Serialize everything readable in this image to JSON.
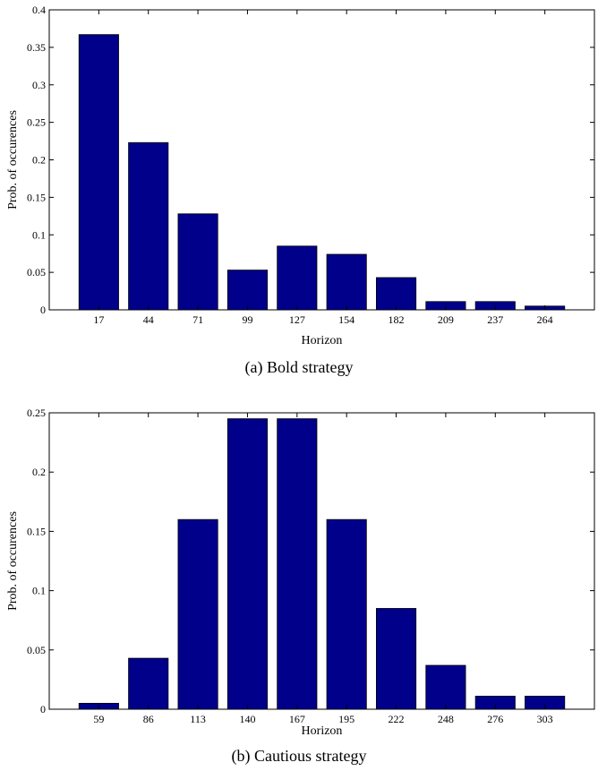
{
  "chart_data": [
    {
      "type": "bar",
      "categories": [
        "17",
        "44",
        "71",
        "99",
        "127",
        "154",
        "182",
        "209",
        "237",
        "264"
      ],
      "values": [
        0.367,
        0.223,
        0.128,
        0.053,
        0.085,
        0.074,
        0.043,
        0.011,
        0.011,
        0.005
      ],
      "yticks": [
        "0",
        "0.05",
        "0.1",
        "0.15",
        "0.2",
        "0.25",
        "0.3",
        "0.35",
        "0.4"
      ],
      "ylim": [
        0,
        0.4
      ],
      "xlabel": "Horizon",
      "ylabel": "Prob. of occurences",
      "bar_color": "#00008B",
      "caption": "(a)  Bold strategy"
    },
    {
      "type": "bar",
      "categories": [
        "59",
        "86",
        "113",
        "140",
        "167",
        "195",
        "222",
        "248",
        "276",
        "303"
      ],
      "values": [
        0.005,
        0.043,
        0.16,
        0.245,
        0.245,
        0.16,
        0.085,
        0.037,
        0.011,
        0.011
      ],
      "yticks": [
        "0",
        "0.05",
        "0.1",
        "0.15",
        "0.2",
        "0.25"
      ],
      "ylim": [
        0,
        0.25
      ],
      "xlabel": "Horizon",
      "ylabel": "Prob. of occurences",
      "bar_color": "#00008B",
      "caption": "(b)  Cautious strategy"
    }
  ]
}
